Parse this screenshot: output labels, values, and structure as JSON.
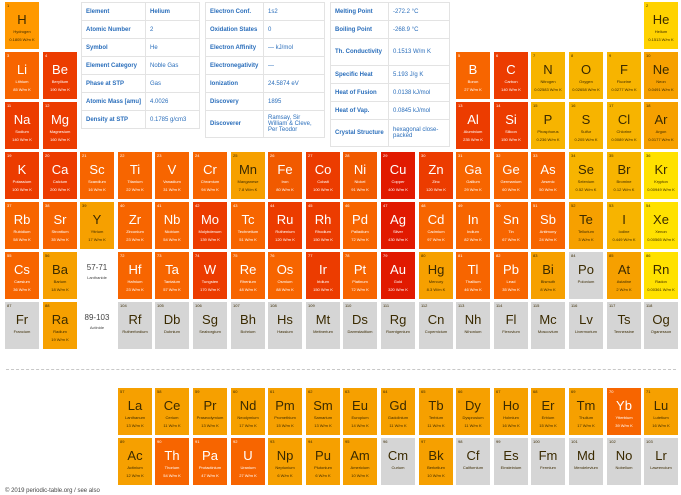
{
  "colors": {
    "h": "#ff9900",
    "ar": "#f6a000",
    "cl": "#f7b400",
    "y": "#ffd200",
    "ly": "#ffe100",
    "or": "#f76500",
    "or2": "#f15a00",
    "rd": "#ec3c00",
    "rd2": "#e11a00",
    "gray": "#d5d5d5"
  },
  "elements": [
    {
      "n": 1,
      "s": "H",
      "name": "Hydrogen",
      "v": "0.1805 W/m K",
      "c": "h",
      "col": 0,
      "row": 0
    },
    {
      "n": 2,
      "s": "He",
      "name": "Helium",
      "v": "0.1513 W/m K",
      "c": "y",
      "col": 17,
      "row": 0
    },
    {
      "n": 3,
      "s": "Li",
      "name": "Lithium",
      "v": "85 W/m K",
      "c": "or",
      "col": 0,
      "row": 1
    },
    {
      "n": 4,
      "s": "Be",
      "name": "Beryllium",
      "v": "190 W/m K",
      "c": "rd",
      "col": 1,
      "row": 1
    },
    {
      "n": 5,
      "s": "B",
      "name": "Boron",
      "v": "27 W/m K",
      "c": "or",
      "col": 12,
      "row": 1
    },
    {
      "n": 6,
      "s": "C",
      "name": "Carbon",
      "v": "140 W/m K",
      "c": "rd",
      "col": 13,
      "row": 1
    },
    {
      "n": 7,
      "s": "N",
      "name": "Nitrogen",
      "v": "0.02583 W/m K",
      "c": "cl",
      "col": 14,
      "row": 1
    },
    {
      "n": 8,
      "s": "O",
      "name": "Oxygen",
      "v": "0.02658 W/m K",
      "c": "cl",
      "col": 15,
      "row": 1
    },
    {
      "n": 9,
      "s": "F",
      "name": "Fluorine",
      "v": "0.0277 W/m K",
      "c": "cl",
      "col": 16,
      "row": 1
    },
    {
      "n": 10,
      "s": "Ne",
      "name": "Neon",
      "v": "0.0491 W/m K",
      "c": "ar",
      "col": 17,
      "row": 1
    },
    {
      "n": 11,
      "s": "Na",
      "name": "Sodium",
      "v": "140 W/m K",
      "c": "rd",
      "col": 0,
      "row": 2
    },
    {
      "n": 12,
      "s": "Mg",
      "name": "Magnesium",
      "v": "160 W/m K",
      "c": "rd",
      "col": 1,
      "row": 2
    },
    {
      "n": 13,
      "s": "Al",
      "name": "Aluminium",
      "v": "235 W/m K",
      "c": "rd",
      "col": 12,
      "row": 2
    },
    {
      "n": 14,
      "s": "Si",
      "name": "Silicon",
      "v": "150 W/m K",
      "c": "rd",
      "col": 13,
      "row": 2
    },
    {
      "n": 15,
      "s": "P",
      "name": "Phosphorus",
      "v": "0.236 W/m K",
      "c": "cl",
      "col": 14,
      "row": 2
    },
    {
      "n": 16,
      "s": "S",
      "name": "Sulfur",
      "v": "0.205 W/m K",
      "c": "cl",
      "col": 15,
      "row": 2
    },
    {
      "n": 17,
      "s": "Cl",
      "name": "Chlorine",
      "v": "0.0089 W/m K",
      "c": "cl",
      "col": 16,
      "row": 2
    },
    {
      "n": 18,
      "s": "Ar",
      "name": "Argon",
      "v": "0.0177 W/m K",
      "c": "ar",
      "col": 17,
      "row": 2
    },
    {
      "n": 19,
      "s": "K",
      "name": "Potassium",
      "v": "100 W/m K",
      "c": "rd",
      "col": 0,
      "row": 3
    },
    {
      "n": 20,
      "s": "Ca",
      "name": "Calcium",
      "v": "200 W/m K",
      "c": "rd",
      "col": 1,
      "row": 3
    },
    {
      "n": 21,
      "s": "Sc",
      "name": "Scandium",
      "v": "16 W/m K",
      "c": "or",
      "col": 2,
      "row": 3
    },
    {
      "n": 22,
      "s": "Ti",
      "name": "Titanium",
      "v": "22 W/m K",
      "c": "or",
      "col": 3,
      "row": 3
    },
    {
      "n": 23,
      "s": "V",
      "name": "Vanadium",
      "v": "31 W/m K",
      "c": "or",
      "col": 4,
      "row": 3
    },
    {
      "n": 24,
      "s": "Cr",
      "name": "Chromium",
      "v": "94 W/m K",
      "c": "or",
      "col": 5,
      "row": 3
    },
    {
      "n": 25,
      "s": "Mn",
      "name": "Manganese",
      "v": "7.8 W/m K",
      "c": "ar",
      "col": 6,
      "row": 3
    },
    {
      "n": 26,
      "s": "Fe",
      "name": "Iron",
      "v": "80 W/m K",
      "c": "or2",
      "col": 7,
      "row": 3
    },
    {
      "n": 27,
      "s": "Co",
      "name": "Cobalt",
      "v": "100 W/m K",
      "c": "rd",
      "col": 8,
      "row": 3
    },
    {
      "n": 28,
      "s": "Ni",
      "name": "Nickel",
      "v": "91 W/m K",
      "c": "or2",
      "col": 9,
      "row": 3
    },
    {
      "n": 29,
      "s": "Cu",
      "name": "Copper",
      "v": "400 W/m K",
      "c": "rd2",
      "col": 10,
      "row": 3
    },
    {
      "n": 30,
      "s": "Zn",
      "name": "Zinc",
      "v": "120 W/m K",
      "c": "rd",
      "col": 11,
      "row": 3
    },
    {
      "n": 31,
      "s": "Ga",
      "name": "Gallium",
      "v": "29 W/m K",
      "c": "or",
      "col": 12,
      "row": 3
    },
    {
      "n": 32,
      "s": "Ge",
      "name": "Germanium",
      "v": "60 W/m K",
      "c": "or",
      "col": 13,
      "row": 3
    },
    {
      "n": 33,
      "s": "As",
      "name": "Arsenic",
      "v": "50 W/m K",
      "c": "or",
      "col": 14,
      "row": 3
    },
    {
      "n": 34,
      "s": "Se",
      "name": "Selenium",
      "v": "0.52 W/m K",
      "c": "cl",
      "col": 15,
      "row": 3
    },
    {
      "n": 35,
      "s": "Br",
      "name": "Bromine",
      "v": "0.12 W/m K",
      "c": "cl",
      "col": 16,
      "row": 3
    },
    {
      "n": 36,
      "s": "Kr",
      "name": "Krypton",
      "v": "0.00949 W/m K",
      "c": "ly",
      "col": 17,
      "row": 3
    },
    {
      "n": 37,
      "s": "Rb",
      "name": "Rubidium",
      "v": "58 W/m K",
      "c": "or",
      "col": 0,
      "row": 4
    },
    {
      "n": 38,
      "s": "Sr",
      "name": "Strontium",
      "v": "35 W/m K",
      "c": "or",
      "col": 1,
      "row": 4
    },
    {
      "n": 39,
      "s": "Y",
      "name": "Yttrium",
      "v": "17 W/m K",
      "c": "ar",
      "col": 2,
      "row": 4
    },
    {
      "n": 40,
      "s": "Zr",
      "name": "Zirconium",
      "v": "23 W/m K",
      "c": "or",
      "col": 3,
      "row": 4
    },
    {
      "n": 41,
      "s": "Nb",
      "name": "Niobium",
      "v": "54 W/m K",
      "c": "or",
      "col": 4,
      "row": 4
    },
    {
      "n": 42,
      "s": "Mo",
      "name": "Molybdenum",
      "v": "139 W/m K",
      "c": "rd",
      "col": 5,
      "row": 4
    },
    {
      "n": 43,
      "s": "Tc",
      "name": "Technetium",
      "v": "51 W/m K",
      "c": "or",
      "col": 6,
      "row": 4
    },
    {
      "n": 44,
      "s": "Ru",
      "name": "Ruthenium",
      "v": "120 W/m K",
      "c": "rd",
      "col": 7,
      "row": 4
    },
    {
      "n": 45,
      "s": "Rh",
      "name": "Rhodium",
      "v": "150 W/m K",
      "c": "rd",
      "col": 8,
      "row": 4
    },
    {
      "n": 46,
      "s": "Pd",
      "name": "Palladium",
      "v": "72 W/m K",
      "c": "or",
      "col": 9,
      "row": 4
    },
    {
      "n": 47,
      "s": "Ag",
      "name": "Silver",
      "v": "430 W/m K",
      "c": "rd2",
      "col": 10,
      "row": 4
    },
    {
      "n": 48,
      "s": "Cd",
      "name": "Cadmium",
      "v": "97 W/m K",
      "c": "or",
      "col": 11,
      "row": 4
    },
    {
      "n": 49,
      "s": "In",
      "name": "Indium",
      "v": "82 W/m K",
      "c": "or",
      "col": 12,
      "row": 4
    },
    {
      "n": 50,
      "s": "Sn",
      "name": "Tin",
      "v": "67 W/m K",
      "c": "or",
      "col": 13,
      "row": 4
    },
    {
      "n": 51,
      "s": "Sb",
      "name": "Antimony",
      "v": "24 W/m K",
      "c": "or",
      "col": 14,
      "row": 4
    },
    {
      "n": 52,
      "s": "Te",
      "name": "Tellurium",
      "v": "3 W/m K",
      "c": "ar",
      "col": 15,
      "row": 4
    },
    {
      "n": 53,
      "s": "I",
      "name": "Iodine",
      "v": "0.449 W/m K",
      "c": "cl",
      "col": 16,
      "row": 4
    },
    {
      "n": 54,
      "s": "Xe",
      "name": "Xenon",
      "v": "0.00565 W/m K",
      "c": "ly",
      "col": 17,
      "row": 4
    },
    {
      "n": 55,
      "s": "Cs",
      "name": "Caesium",
      "v": "36 W/m K",
      "c": "or",
      "col": 0,
      "row": 5
    },
    {
      "n": 56,
      "s": "Ba",
      "name": "Barium",
      "v": "18 W/m K",
      "c": "ar",
      "col": 1,
      "row": 5
    },
    {
      "n": 72,
      "s": "Hf",
      "name": "Hafnium",
      "v": "23 W/m K",
      "c": "or",
      "col": 3,
      "row": 5
    },
    {
      "n": 73,
      "s": "Ta",
      "name": "Tantalum",
      "v": "57 W/m K",
      "c": "or",
      "col": 4,
      "row": 5
    },
    {
      "n": 74,
      "s": "W",
      "name": "Tungsten",
      "v": "170 W/m K",
      "c": "rd",
      "col": 5,
      "row": 5
    },
    {
      "n": 75,
      "s": "Re",
      "name": "Rhenium",
      "v": "48 W/m K",
      "c": "or",
      "col": 6,
      "row": 5
    },
    {
      "n": 76,
      "s": "Os",
      "name": "Osmium",
      "v": "88 W/m K",
      "c": "or",
      "col": 7,
      "row": 5
    },
    {
      "n": 77,
      "s": "Ir",
      "name": "Iridium",
      "v": "150 W/m K",
      "c": "rd",
      "col": 8,
      "row": 5
    },
    {
      "n": 78,
      "s": "Pt",
      "name": "Platinum",
      "v": "72 W/m K",
      "c": "or",
      "col": 9,
      "row": 5
    },
    {
      "n": 79,
      "s": "Au",
      "name": "Gold",
      "v": "320 W/m K",
      "c": "rd2",
      "col": 10,
      "row": 5
    },
    {
      "n": 80,
      "s": "Hg",
      "name": "Mercury",
      "v": "8.3 W/m K",
      "c": "ar",
      "col": 11,
      "row": 5
    },
    {
      "n": 81,
      "s": "Tl",
      "name": "Thallium",
      "v": "46 W/m K",
      "c": "or",
      "col": 12,
      "row": 5
    },
    {
      "n": 82,
      "s": "Pb",
      "name": "Lead",
      "v": "35 W/m K",
      "c": "or",
      "col": 13,
      "row": 5
    },
    {
      "n": 83,
      "s": "Bi",
      "name": "Bismuth",
      "v": "8 W/m K",
      "c": "ar",
      "col": 14,
      "row": 5
    },
    {
      "n": 84,
      "s": "Po",
      "name": "Polonium",
      "v": "",
      "c": "gray",
      "col": 15,
      "row": 5
    },
    {
      "n": 85,
      "s": "At",
      "name": "Astatine",
      "v": "2 W/m K",
      "c": "ar",
      "col": 16,
      "row": 5
    },
    {
      "n": 86,
      "s": "Rn",
      "name": "Radon",
      "v": "0.00361 W/m K",
      "c": "ly",
      "col": 17,
      "row": 5
    },
    {
      "n": 87,
      "s": "Fr",
      "name": "Francium",
      "v": "",
      "c": "gray",
      "col": 0,
      "row": 6
    },
    {
      "n": 88,
      "s": "Ra",
      "name": "Radium",
      "v": "19 W/m K",
      "c": "ar",
      "col": 1,
      "row": 6
    },
    {
      "n": 104,
      "s": "Rf",
      "name": "Rutherfordium",
      "v": "",
      "c": "gray",
      "col": 3,
      "row": 6
    },
    {
      "n": 105,
      "s": "Db",
      "name": "Dubnium",
      "v": "",
      "c": "gray",
      "col": 4,
      "row": 6
    },
    {
      "n": 106,
      "s": "Sg",
      "name": "Seaborgium",
      "v": "",
      "c": "gray",
      "col": 5,
      "row": 6
    },
    {
      "n": 107,
      "s": "Bh",
      "name": "Bohrium",
      "v": "",
      "c": "gray",
      "col": 6,
      "row": 6
    },
    {
      "n": 108,
      "s": "Hs",
      "name": "Hassium",
      "v": "",
      "c": "gray",
      "col": 7,
      "row": 6
    },
    {
      "n": 109,
      "s": "Mt",
      "name": "Meitnerium",
      "v": "",
      "c": "gray",
      "col": 8,
      "row": 6
    },
    {
      "n": 110,
      "s": "Ds",
      "name": "Darmstadtium",
      "v": "",
      "c": "gray",
      "col": 9,
      "row": 6
    },
    {
      "n": 111,
      "s": "Rg",
      "name": "Roentgenium",
      "v": "",
      "c": "gray",
      "col": 10,
      "row": 6
    },
    {
      "n": 112,
      "s": "Cn",
      "name": "Copernicium",
      "v": "",
      "c": "gray",
      "col": 11,
      "row": 6
    },
    {
      "n": 113,
      "s": "Nh",
      "name": "Nihonium",
      "v": "",
      "c": "gray",
      "col": 12,
      "row": 6
    },
    {
      "n": 114,
      "s": "Fl",
      "name": "Flerovium",
      "v": "",
      "c": "gray",
      "col": 13,
      "row": 6
    },
    {
      "n": 115,
      "s": "Mc",
      "name": "Moscovium",
      "v": "",
      "c": "gray",
      "col": 14,
      "row": 6
    },
    {
      "n": 116,
      "s": "Lv",
      "name": "Livermorium",
      "v": "",
      "c": "gray",
      "col": 15,
      "row": 6
    },
    {
      "n": 117,
      "s": "Ts",
      "name": "Tennessine",
      "v": "",
      "c": "gray",
      "col": 16,
      "row": 6
    },
    {
      "n": 118,
      "s": "Og",
      "name": "Oganesson",
      "v": "",
      "c": "gray",
      "col": 17,
      "row": 6
    },
    {
      "n": 57,
      "s": "La",
      "name": "Lanthanum",
      "v": "13 W/m K",
      "c": "ar",
      "col": 3,
      "row": 7
    },
    {
      "n": 58,
      "s": "Ce",
      "name": "Cerium",
      "v": "11 W/m K",
      "c": "ar",
      "col": 4,
      "row": 7
    },
    {
      "n": 59,
      "s": "Pr",
      "name": "Praseodymium",
      "v": "13 W/m K",
      "c": "ar",
      "col": 5,
      "row": 7
    },
    {
      "n": 60,
      "s": "Nd",
      "name": "Neodymium",
      "v": "17 W/m K",
      "c": "ar",
      "col": 6,
      "row": 7
    },
    {
      "n": 61,
      "s": "Pm",
      "name": "Promethium",
      "v": "15 W/m K",
      "c": "ar",
      "col": 7,
      "row": 7
    },
    {
      "n": 62,
      "s": "Sm",
      "name": "Samarium",
      "v": "13 W/m K",
      "c": "ar",
      "col": 8,
      "row": 7
    },
    {
      "n": 63,
      "s": "Eu",
      "name": "Europium",
      "v": "14 W/m K",
      "c": "ar",
      "col": 9,
      "row": 7
    },
    {
      "n": 64,
      "s": "Gd",
      "name": "Gadolinium",
      "v": "11 W/m K",
      "c": "ar",
      "col": 10,
      "row": 7
    },
    {
      "n": 65,
      "s": "Tb",
      "name": "Terbium",
      "v": "11 W/m K",
      "c": "ar",
      "col": 11,
      "row": 7
    },
    {
      "n": 66,
      "s": "Dy",
      "name": "Dysprosium",
      "v": "11 W/m K",
      "c": "ar",
      "col": 12,
      "row": 7
    },
    {
      "n": 67,
      "s": "Ho",
      "name": "Holmium",
      "v": "16 W/m K",
      "c": "ar",
      "col": 13,
      "row": 7
    },
    {
      "n": 68,
      "s": "Er",
      "name": "Erbium",
      "v": "15 W/m K",
      "c": "ar",
      "col": 14,
      "row": 7
    },
    {
      "n": 69,
      "s": "Tm",
      "name": "Thulium",
      "v": "17 W/m K",
      "c": "ar",
      "col": 15,
      "row": 7
    },
    {
      "n": 70,
      "s": "Yb",
      "name": "Ytterbium",
      "v": "39 W/m K",
      "c": "or",
      "col": 16,
      "row": 7
    },
    {
      "n": 71,
      "s": "Lu",
      "name": "Lutetium",
      "v": "16 W/m K",
      "c": "ar",
      "col": 17,
      "row": 7
    },
    {
      "n": 89,
      "s": "Ac",
      "name": "Actinium",
      "v": "12 W/m K",
      "c": "ar",
      "col": 3,
      "row": 8
    },
    {
      "n": 90,
      "s": "Th",
      "name": "Thorium",
      "v": "54 W/m K",
      "c": "or",
      "col": 4,
      "row": 8
    },
    {
      "n": 91,
      "s": "Pa",
      "name": "Protactinium",
      "v": "47 W/m K",
      "c": "or",
      "col": 5,
      "row": 8
    },
    {
      "n": 92,
      "s": "U",
      "name": "Uranium",
      "v": "27 W/m K",
      "c": "or",
      "col": 6,
      "row": 8
    },
    {
      "n": 93,
      "s": "Np",
      "name": "Neptunium",
      "v": "6 W/m K",
      "c": "ar",
      "col": 7,
      "row": 8
    },
    {
      "n": 94,
      "s": "Pu",
      "name": "Plutonium",
      "v": "6 W/m K",
      "c": "ar",
      "col": 8,
      "row": 8
    },
    {
      "n": 95,
      "s": "Am",
      "name": "Americium",
      "v": "10 W/m K",
      "c": "ar",
      "col": 9,
      "row": 8
    },
    {
      "n": 96,
      "s": "Cm",
      "name": "Curium",
      "v": "",
      "c": "gray",
      "col": 10,
      "row": 8
    },
    {
      "n": 97,
      "s": "Bk",
      "name": "Berkelium",
      "v": "10 W/m K",
      "c": "ar",
      "col": 11,
      "row": 8
    },
    {
      "n": 98,
      "s": "Cf",
      "name": "Californium",
      "v": "",
      "c": "gray",
      "col": 12,
      "row": 8
    },
    {
      "n": 99,
      "s": "Es",
      "name": "Einsteinium",
      "v": "",
      "c": "gray",
      "col": 13,
      "row": 8
    },
    {
      "n": 100,
      "s": "Fm",
      "name": "Fermium",
      "v": "",
      "c": "gray",
      "col": 14,
      "row": 8
    },
    {
      "n": 101,
      "s": "Md",
      "name": "Mendelevium",
      "v": "",
      "c": "gray",
      "col": 15,
      "row": 8
    },
    {
      "n": 102,
      "s": "No",
      "name": "Nobelium",
      "v": "",
      "c": "gray",
      "col": 16,
      "row": 8
    },
    {
      "n": 103,
      "s": "Lr",
      "name": "Lawrencium",
      "v": "",
      "c": "gray",
      "col": 17,
      "row": 8
    }
  ],
  "placeholders": [
    {
      "range": "57-71",
      "label": "Lanthanide",
      "col": 2,
      "row": 5
    },
    {
      "range": "89-103",
      "label": "Actinide",
      "col": 2,
      "row": 6
    }
  ],
  "info": {
    "t1": [
      [
        "Element",
        "Helium"
      ],
      [
        "Atomic Number",
        "2"
      ],
      [
        "Symbol",
        "He"
      ],
      [
        "Element Category",
        "Noble Gas"
      ],
      [
        "Phase at STP",
        "Gas"
      ],
      [
        "Atomic Mass [amu]",
        "4.0026"
      ],
      [
        "Density at STP",
        "0.1785 g/cm3"
      ]
    ],
    "t2": [
      [
        "Electron Conf.",
        "1s2"
      ],
      [
        "Oxidation States",
        "0"
      ],
      [
        "Electron Affinity",
        "— kJ/mol"
      ],
      [
        "Electronegativity",
        "—"
      ],
      [
        "Ionization",
        "24.5874 eV"
      ],
      [
        "Discovery",
        "1895"
      ],
      [
        "Discoverer",
        "Ramsay, Sir William & Cleve, Per Teodor"
      ]
    ],
    "t3": [
      [
        "Melting Point",
        "-272.2 °C"
      ],
      [
        "Boiling Point",
        "-268.9 °C"
      ],
      [
        "Th. Conductivity",
        "0.1513 W/m K"
      ],
      [
        "Specific Heat",
        "5.193 J/g K"
      ],
      [
        "Heat of Fusion",
        "0.0138 kJ/mol"
      ],
      [
        "Heat of Vap.",
        "0.0845 kJ/mol"
      ],
      [
        "Crystal Structure",
        "hexagonal close-packed"
      ]
    ]
  },
  "footer": "© 2019 periodic-table.org / see also"
}
